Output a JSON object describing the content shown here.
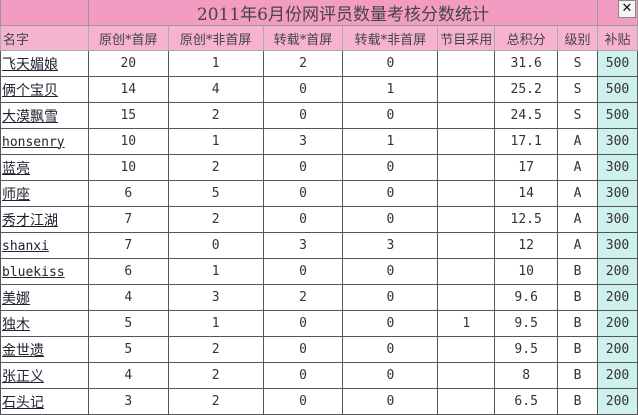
{
  "title": "2011年6月份网评员数量考核分数统计",
  "close_icon": "close-x-icon",
  "colors": {
    "title_bg": "#f39cc2",
    "header_bg": "#f6b3d0",
    "subsidy_bg": "#cff1ee"
  },
  "headers": [
    "名字",
    "原创*首屏",
    "原创*非首屏",
    "转载*首屏",
    "转载*非首屏",
    "节目采用",
    "总积分",
    "级别",
    "补贴"
  ],
  "rows": [
    [
      "飞天媚娘",
      "20",
      "1",
      "2",
      "0",
      "",
      "31.6",
      "S",
      "500"
    ],
    [
      "俩个宝贝",
      "14",
      "4",
      "0",
      "1",
      "",
      "25.2",
      "S",
      "500"
    ],
    [
      "大漠飘雪",
      "15",
      "2",
      "0",
      "0",
      "",
      "24.5",
      "S",
      "500"
    ],
    [
      "honsenry",
      "10",
      "1",
      "3",
      "1",
      "",
      "17.1",
      "A",
      "300"
    ],
    [
      "蓝亮",
      "10",
      "2",
      "0",
      "0",
      "",
      "17",
      "A",
      "300"
    ],
    [
      "师座",
      "6",
      "5",
      "0",
      "0",
      "",
      "14",
      "A",
      "300"
    ],
    [
      "秀才江湖",
      "7",
      "2",
      "0",
      "0",
      "",
      "12.5",
      "A",
      "300"
    ],
    [
      "shanxi",
      "7",
      "0",
      "3",
      "3",
      "",
      "12",
      "A",
      "300"
    ],
    [
      "bluekiss",
      "6",
      "1",
      "0",
      "0",
      "",
      "10",
      "B",
      "200"
    ],
    [
      "美娜",
      "4",
      "3",
      "2",
      "0",
      "",
      "9.6",
      "B",
      "200"
    ],
    [
      "独木",
      "5",
      "1",
      "0",
      "0",
      "1",
      "9.5",
      "B",
      "200"
    ],
    [
      "金世遗",
      "5",
      "2",
      "0",
      "0",
      "",
      "9.5",
      "B",
      "200"
    ],
    [
      "张正义",
      "4",
      "2",
      "0",
      "0",
      "",
      "8",
      "B",
      "200"
    ],
    [
      "石头记",
      "3",
      "2",
      "0",
      "0",
      "",
      "6.5",
      "B",
      "200"
    ]
  ]
}
